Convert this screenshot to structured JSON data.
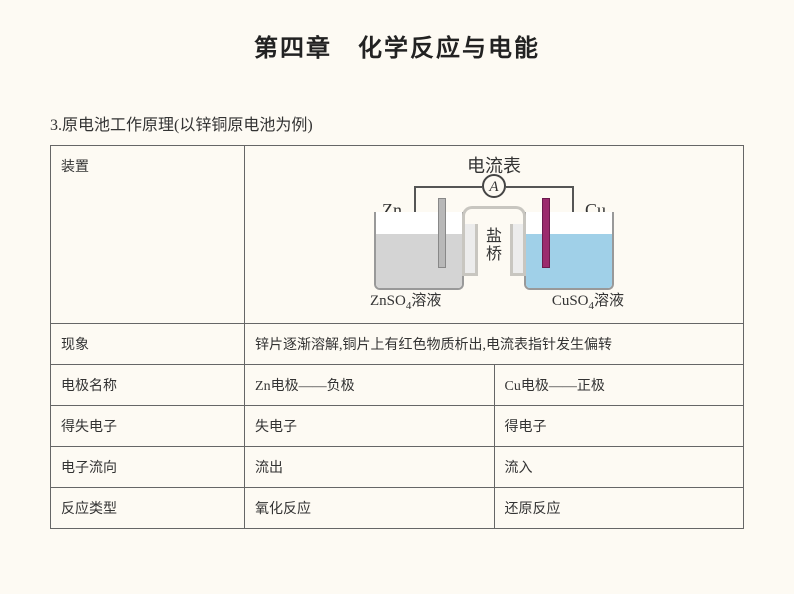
{
  "title": "第四章　化学反应与电能",
  "subtitle": "3.原电池工作原理(以锌铜原电池为例)",
  "diagram": {
    "ammeter_label": "电流表",
    "ammeter_symbol": "A",
    "zn_label": "Zn",
    "cu_label": "Cu",
    "salt_bridge": "盐桥",
    "left_solution_prefix": "ZnSO",
    "left_solution_sub": "4",
    "left_solution_suffix": "溶液",
    "right_solution_prefix": "CuSO",
    "right_solution_sub": "4",
    "right_solution_suffix": "溶液",
    "colors": {
      "zn_solution": "#d4d4d4",
      "cu_solution": "#a0d0e8",
      "zn_electrode": "#b8b8b8",
      "cu_electrode": "#9b2b6e",
      "wire": "#555555",
      "beaker_border": "#999999",
      "background": "#fdfaf3"
    }
  },
  "rows": {
    "device": "装置",
    "phenomenon": {
      "label": "现象",
      "text": "锌片逐渐溶解,铜片上有红色物质析出,电流表指针发生偏转"
    },
    "electrode_name": {
      "label": "电极名称",
      "zn": "Zn电极——负极",
      "cu": "Cu电极——正极"
    },
    "electron_gain_loss": {
      "label": "得失电子",
      "zn": "失电子",
      "cu": "得电子"
    },
    "electron_flow": {
      "label": "电子流向",
      "zn": "流出",
      "cu": "流入"
    },
    "reaction_type": {
      "label": "反应类型",
      "zn": "氧化反应",
      "cu": "还原反应"
    }
  }
}
